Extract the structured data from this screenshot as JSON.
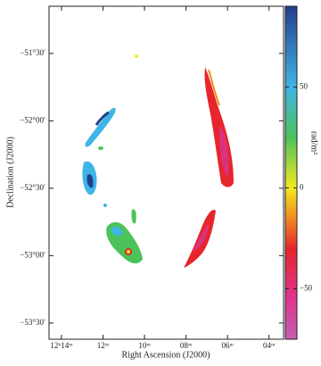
{
  "chart_data": {
    "type": "image",
    "xlabel": "Right Ascension (J2000)",
    "ylabel": "Declination (J2000)",
    "colorbar_label": "rad/m²",
    "xlim": [
      14.6,
      3.3
    ],
    "xticks": [
      {
        "value": 14,
        "label": "12ʰ14ᵐ"
      },
      {
        "value": 12,
        "label": "12ᵐ"
      },
      {
        "value": 10,
        "label": "10ᵐ"
      },
      {
        "value": 8,
        "label": "08ᵐ"
      },
      {
        "value": 6,
        "label": "06ᵐ"
      },
      {
        "value": 4,
        "label": "04ᵐ"
      }
    ],
    "ylim": [
      -53.62,
      -51.15
    ],
    "yticks": [
      {
        "value": -51.5,
        "label": "−51°30′"
      },
      {
        "value": -52,
        "label": "−52°00′"
      },
      {
        "value": -52.5,
        "label": "−52°30′"
      },
      {
        "value": -53,
        "label": "−53°00′"
      },
      {
        "value": -53.5,
        "label": "−53°30′"
      }
    ],
    "clim": [
      -75,
      90
    ],
    "cticks": [
      {
        "value": 50,
        "label": "50"
      },
      {
        "value": 0,
        "label": "0"
      },
      {
        "value": -50,
        "label": "−50"
      }
    ],
    "colormap": [
      {
        "value": 90,
        "color": "#233f8f"
      },
      {
        "value": 50,
        "color": "#3fb4e6"
      },
      {
        "value": 25,
        "color": "#4cc35a"
      },
      {
        "value": 0,
        "color": "#f2ea1e"
      },
      {
        "value": -15,
        "color": "#f28a1e"
      },
      {
        "value": -30,
        "color": "#e6262c"
      },
      {
        "value": -55,
        "color": "#e0338f"
      },
      {
        "value": -75,
        "color": "#c65fb0"
      }
    ]
  }
}
